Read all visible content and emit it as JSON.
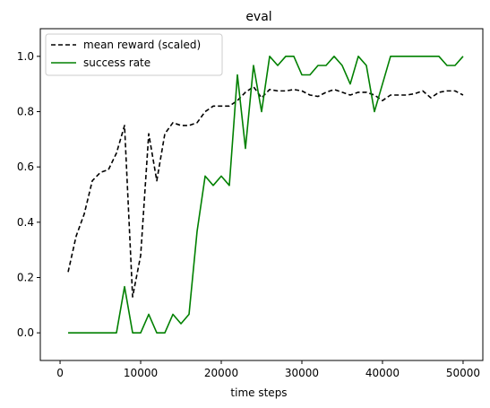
{
  "chart_data": {
    "type": "line",
    "title": "eval",
    "xlabel": "time steps",
    "ylabel": "",
    "xlim": [
      -2450,
      52450
    ],
    "ylim": [
      -0.1,
      1.1
    ],
    "x_ticks": [
      0,
      10000,
      20000,
      30000,
      40000,
      50000
    ],
    "y_ticks": [
      0.0,
      0.2,
      0.4,
      0.6,
      0.8,
      1.0
    ],
    "x_tick_labels": [
      "0",
      "10000",
      "20000",
      "30000",
      "40000",
      "50000"
    ],
    "y_tick_labels": [
      "0.0",
      "0.2",
      "0.4",
      "0.6",
      "0.8",
      "1.0"
    ],
    "legend_position": "top-left",
    "grid": false,
    "x": [
      1000,
      2000,
      3000,
      4000,
      5000,
      6000,
      7000,
      8000,
      9000,
      10000,
      11000,
      12000,
      13000,
      14000,
      15000,
      16000,
      17000,
      18000,
      19000,
      20000,
      21000,
      22000,
      23000,
      24000,
      25000,
      26000,
      27000,
      28000,
      29000,
      30000,
      31000,
      32000,
      33000,
      34000,
      35000,
      36000,
      37000,
      38000,
      39000,
      40000,
      41000,
      42000,
      43000,
      44000,
      45000,
      46000,
      47000,
      48000,
      49000,
      50000
    ],
    "series": [
      {
        "name": "mean reward (scaled)",
        "color": "#000000",
        "style": "dashed",
        "values": [
          0.22,
          0.35,
          0.43,
          0.55,
          0.58,
          0.59,
          0.65,
          0.75,
          0.13,
          0.28,
          0.72,
          0.55,
          0.72,
          0.76,
          0.75,
          0.75,
          0.76,
          0.8,
          0.82,
          0.82,
          0.82,
          0.84,
          0.87,
          0.89,
          0.85,
          0.88,
          0.875,
          0.875,
          0.88,
          0.875,
          0.86,
          0.855,
          0.87,
          0.88,
          0.87,
          0.86,
          0.87,
          0.87,
          0.86,
          0.84,
          0.86,
          0.86,
          0.86,
          0.865,
          0.875,
          0.85,
          0.87,
          0.875,
          0.875,
          0.86
        ]
      },
      {
        "name": "success rate",
        "color": "#008000",
        "style": "solid",
        "values": [
          0.0,
          0.0,
          0.0,
          0.0,
          0.0,
          0.0,
          0.0,
          0.167,
          0.0,
          0.0,
          0.067,
          0.0,
          0.0,
          0.067,
          0.033,
          0.067,
          0.367,
          0.567,
          0.533,
          0.567,
          0.533,
          0.933,
          0.667,
          0.967,
          0.8,
          1.0,
          0.967,
          1.0,
          1.0,
          0.933,
          0.933,
          0.967,
          0.967,
          1.0,
          0.967,
          0.9,
          1.0,
          0.967,
          0.8,
          0.9,
          1.0,
          1.0,
          1.0,
          1.0,
          1.0,
          1.0,
          1.0,
          0.967,
          0.967,
          1.0
        ]
      }
    ]
  }
}
